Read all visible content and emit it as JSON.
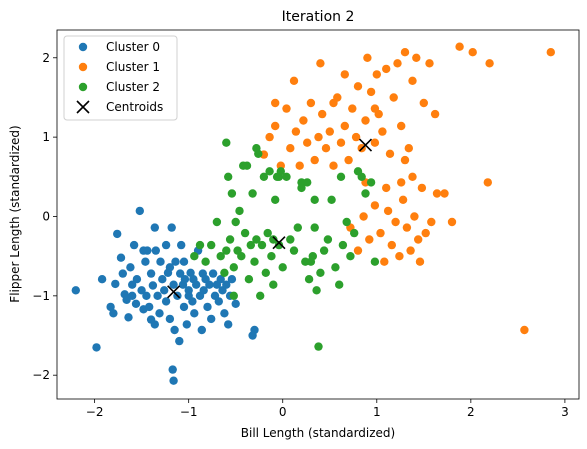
{
  "chart_data": {
    "type": "scatter",
    "title": "Iteration 2",
    "xlabel": "Bill Length (standardized)",
    "ylabel": "Flipper Length (standardized)",
    "xlim": [
      -2.4,
      3.15
    ],
    "ylim": [
      -2.3,
      2.35
    ],
    "xticks": [
      -2,
      -1,
      0,
      1,
      2,
      3
    ],
    "yticks": [
      -2,
      -1,
      0,
      1,
      2
    ],
    "grid": false,
    "legend_position": "top-left",
    "series": [
      {
        "name": "Cluster 0",
        "color": "#1f77b4",
        "points": [
          [
            -2.2,
            -0.93
          ],
          [
            -1.98,
            -1.65
          ],
          [
            -1.92,
            -0.79
          ],
          [
            -1.83,
            -1.14
          ],
          [
            -1.8,
            -1.22
          ],
          [
            -1.78,
            -0.85
          ],
          [
            -1.76,
            -0.22
          ],
          [
            -1.72,
            -0.52
          ],
          [
            -1.7,
            -0.72
          ],
          [
            -1.68,
            -0.98
          ],
          [
            -1.66,
            -1.05
          ],
          [
            -1.64,
            -1.27
          ],
          [
            -1.62,
            -0.64
          ],
          [
            -1.6,
            -0.86
          ],
          [
            -1.58,
            -0.36
          ],
          [
            -1.56,
            -1.1
          ],
          [
            -1.55,
            -0.79
          ],
          [
            -1.52,
            0.07
          ],
          [
            -1.5,
            -0.93
          ],
          [
            -1.48,
            -1.17
          ],
          [
            -1.46,
            -0.57
          ],
          [
            -1.45,
            -1.0
          ],
          [
            -1.44,
            -0.43
          ],
          [
            -1.42,
            -1.14
          ],
          [
            -1.4,
            -0.72
          ],
          [
            -1.38,
            -0.87
          ],
          [
            -1.36,
            -1.36
          ],
          [
            -1.35,
            -0.43
          ],
          [
            -1.33,
            -1.0
          ],
          [
            -1.31,
            -1.22
          ],
          [
            -1.3,
            -0.57
          ],
          [
            -1.28,
            -0.79
          ],
          [
            -1.26,
            -0.93
          ],
          [
            -1.24,
            -1.07
          ],
          [
            -1.22,
            -0.71
          ],
          [
            -1.2,
            -1.29
          ],
          [
            -1.18,
            -0.14
          ],
          [
            -1.16,
            -0.86
          ],
          [
            -1.15,
            -1.43
          ],
          [
            -1.14,
            -0.57
          ],
          [
            -1.12,
            -1.0
          ],
          [
            -1.1,
            -1.57
          ],
          [
            -1.09,
            -0.72
          ],
          [
            -1.08,
            -0.36
          ],
          [
            -1.06,
            -0.86
          ],
          [
            -1.05,
            -1.14
          ],
          [
            -1.04,
            -0.79
          ],
          [
            -1.02,
            -1.36
          ],
          [
            -1.0,
            -0.93
          ],
          [
            -0.98,
            -0.71
          ],
          [
            -0.96,
            -1.07
          ],
          [
            -0.95,
            -0.79
          ],
          [
            -0.94,
            -1.22
          ],
          [
            -0.92,
            -0.86
          ],
          [
            -0.9,
            -0.43
          ],
          [
            -0.88,
            -1.0
          ],
          [
            -0.86,
            -1.43
          ],
          [
            -0.85,
            -0.72
          ],
          [
            -0.84,
            -0.93
          ],
          [
            -0.82,
            -0.79
          ],
          [
            -0.8,
            -1.14
          ],
          [
            -0.78,
            -0.86
          ],
          [
            -0.76,
            -1.29
          ],
          [
            -0.74,
            -0.72
          ],
          [
            -0.72,
            -1.0
          ],
          [
            -0.7,
            -0.86
          ],
          [
            -0.68,
            -1.07
          ],
          [
            -0.66,
            -0.79
          ],
          [
            -0.64,
            -0.93
          ],
          [
            -0.62,
            -1.22
          ],
          [
            -0.6,
            -0.86
          ],
          [
            -0.58,
            -1.36
          ],
          [
            -0.56,
            -1.0
          ],
          [
            -0.54,
            -0.79
          ],
          [
            -0.5,
            -1.1
          ],
          [
            -0.3,
            -1.43
          ],
          [
            -0.32,
            -1.5
          ],
          [
            -1.17,
            -1.93
          ],
          [
            -1.16,
            -2.07
          ],
          [
            -1.24,
            -0.36
          ],
          [
            -1.36,
            -0.14
          ],
          [
            -1.48,
            -0.43
          ],
          [
            -1.6,
            -1.0
          ],
          [
            -1.4,
            -1.3
          ],
          [
            -1.2,
            -0.64
          ],
          [
            -1.0,
            -1.0
          ],
          [
            -1.05,
            -0.57
          ]
        ]
      },
      {
        "name": "Cluster 1",
        "color": "#ff7f0e",
        "points": [
          [
            -0.2,
            0.78
          ],
          [
            -0.14,
            1.0
          ],
          [
            -0.08,
            1.14
          ],
          [
            -0.02,
            0.64
          ],
          [
            0.04,
            1.36
          ],
          [
            0.08,
            0.86
          ],
          [
            0.14,
            1.07
          ],
          [
            0.18,
            0.64
          ],
          [
            0.22,
            1.21
          ],
          [
            0.26,
            0.93
          ],
          [
            0.3,
            1.43
          ],
          [
            0.34,
            0.71
          ],
          [
            0.38,
            1.0
          ],
          [
            0.42,
            1.29
          ],
          [
            0.46,
            0.86
          ],
          [
            0.5,
            1.07
          ],
          [
            0.54,
            0.64
          ],
          [
            0.58,
            1.5
          ],
          [
            0.62,
            0.93
          ],
          [
            0.66,
            1.14
          ],
          [
            0.7,
            0.71
          ],
          [
            0.74,
            1.36
          ],
          [
            0.78,
            1.0
          ],
          [
            0.8,
            1.64
          ],
          [
            0.84,
            0.86
          ],
          [
            0.88,
            1.21
          ],
          [
            0.9,
            2.0
          ],
          [
            0.94,
            1.57
          ],
          [
            0.98,
            0.93
          ],
          [
            1.0,
            1.79
          ],
          [
            1.02,
            1.29
          ],
          [
            1.06,
            1.07
          ],
          [
            1.1,
            1.86
          ],
          [
            1.14,
            0.79
          ],
          [
            1.18,
            1.5
          ],
          [
            1.22,
            1.93
          ],
          [
            1.26,
            1.14
          ],
          [
            1.3,
            2.07
          ],
          [
            1.34,
            0.86
          ],
          [
            1.38,
            1.71
          ],
          [
            1.42,
            2.0
          ],
          [
            1.5,
            1.43
          ],
          [
            1.56,
            1.93
          ],
          [
            1.62,
            1.29
          ],
          [
            1.88,
            2.14
          ],
          [
            2.02,
            2.07
          ],
          [
            2.2,
            1.93
          ],
          [
            2.85,
            2.07
          ],
          [
            2.18,
            0.43
          ],
          [
            2.57,
            -1.43
          ],
          [
            0.72,
            -0.14
          ],
          [
            0.8,
            -0.43
          ],
          [
            0.86,
            0.0
          ],
          [
            0.92,
            -0.29
          ],
          [
            0.98,
            0.14
          ],
          [
            1.04,
            -0.21
          ],
          [
            1.08,
            -0.57
          ],
          [
            1.12,
            0.07
          ],
          [
            1.16,
            -0.36
          ],
          [
            1.2,
            -0.07
          ],
          [
            1.24,
            -0.5
          ],
          [
            1.28,
            0.21
          ],
          [
            1.32,
            -0.14
          ],
          [
            1.36,
            -0.43
          ],
          [
            1.4,
            0.0
          ],
          [
            1.44,
            -0.29
          ],
          [
            1.48,
            0.36
          ],
          [
            1.52,
            -0.21
          ],
          [
            1.58,
            -0.07
          ],
          [
            1.64,
            0.29
          ],
          [
            1.72,
            0.29
          ],
          [
            1.8,
            -0.07
          ],
          [
            1.26,
            0.43
          ],
          [
            1.3,
            0.71
          ],
          [
            1.38,
            0.5
          ],
          [
            1.46,
            -0.57
          ],
          [
            1.1,
            0.36
          ],
          [
            0.4,
            1.93
          ],
          [
            0.54,
            1.43
          ],
          [
            0.88,
            0.43
          ],
          [
            -0.08,
            1.43
          ],
          [
            0.12,
            1.71
          ],
          [
            0.66,
            1.79
          ],
          [
            0.98,
            1.36
          ]
        ]
      },
      {
        "name": "Cluster 2",
        "color": "#2ca02c",
        "points": [
          [
            -0.94,
            -0.5
          ],
          [
            -0.88,
            -0.36
          ],
          [
            -0.82,
            -0.57
          ],
          [
            -0.76,
            -0.36
          ],
          [
            -0.7,
            -0.07
          ],
          [
            -0.66,
            -0.5
          ],
          [
            -0.62,
            -0.71
          ],
          [
            -0.6,
            -0.43
          ],
          [
            -0.58,
            0.5
          ],
          [
            -0.56,
            -0.29
          ],
          [
            -0.54,
            0.29
          ],
          [
            -0.52,
            -0.64
          ],
          [
            -0.5,
            -0.07
          ],
          [
            -0.48,
            -0.43
          ],
          [
            -0.46,
            0.07
          ],
          [
            -0.44,
            -0.5
          ],
          [
            -0.4,
            -0.21
          ],
          [
            -0.38,
            0.64
          ],
          [
            -0.36,
            -0.79
          ],
          [
            -0.34,
            -0.36
          ],
          [
            -0.32,
            0.29
          ],
          [
            -0.3,
            -0.57
          ],
          [
            -0.28,
            -0.29
          ],
          [
            -0.26,
            0.79
          ],
          [
            -0.24,
            -1.0
          ],
          [
            -0.22,
            -0.36
          ],
          [
            -0.2,
            0.5
          ],
          [
            -0.18,
            -0.71
          ],
          [
            -0.16,
            -0.21
          ],
          [
            -0.14,
            0.57
          ],
          [
            -0.12,
            -0.5
          ],
          [
            -0.1,
            -0.86
          ],
          [
            -0.08,
            0.21
          ],
          [
            -0.06,
            0.5
          ],
          [
            -0.04,
            -0.36
          ],
          [
            -0.02,
            0.57
          ],
          [
            0.0,
            -0.64
          ],
          [
            0.04,
            0.5
          ],
          [
            0.08,
            -0.29
          ],
          [
            0.12,
            -0.43
          ],
          [
            0.16,
            -0.14
          ],
          [
            0.2,
            0.43
          ],
          [
            0.24,
            -0.57
          ],
          [
            0.28,
            -0.79
          ],
          [
            0.32,
            -0.5
          ],
          [
            0.34,
            0.21
          ],
          [
            0.36,
            -0.93
          ],
          [
            0.38,
            -1.64
          ],
          [
            0.4,
            -0.71
          ],
          [
            0.44,
            -0.43
          ],
          [
            0.48,
            -0.29
          ],
          [
            0.52,
            0.21
          ],
          [
            0.56,
            -0.64
          ],
          [
            0.6,
            -0.86
          ],
          [
            0.64,
            -0.36
          ],
          [
            0.68,
            -0.07
          ],
          [
            0.72,
            -0.5
          ],
          [
            0.76,
            -0.21
          ],
          [
            0.8,
            0.57
          ],
          [
            0.84,
            0.5
          ],
          [
            0.88,
            0.29
          ],
          [
            0.94,
            0.43
          ],
          [
            0.98,
            -0.57
          ],
          [
            -0.6,
            0.93
          ],
          [
            -0.42,
            0.64
          ],
          [
            -0.52,
            -1.0
          ],
          [
            -0.1,
            -0.29
          ],
          [
            0.3,
            -0.57
          ],
          [
            0.2,
            0.36
          ],
          [
            -0.28,
            0.86
          ],
          [
            0.62,
            0.5
          ],
          [
            0.34,
            -0.14
          ],
          [
            -0.04,
            0.5
          ],
          [
            0.26,
            0.43
          ]
        ]
      }
    ],
    "centroids": {
      "name": "Centroids",
      "color": "#000000",
      "points": [
        [
          -1.16,
          -0.95
        ],
        [
          -0.04,
          -0.33
        ],
        [
          0.88,
          0.9
        ]
      ]
    }
  }
}
